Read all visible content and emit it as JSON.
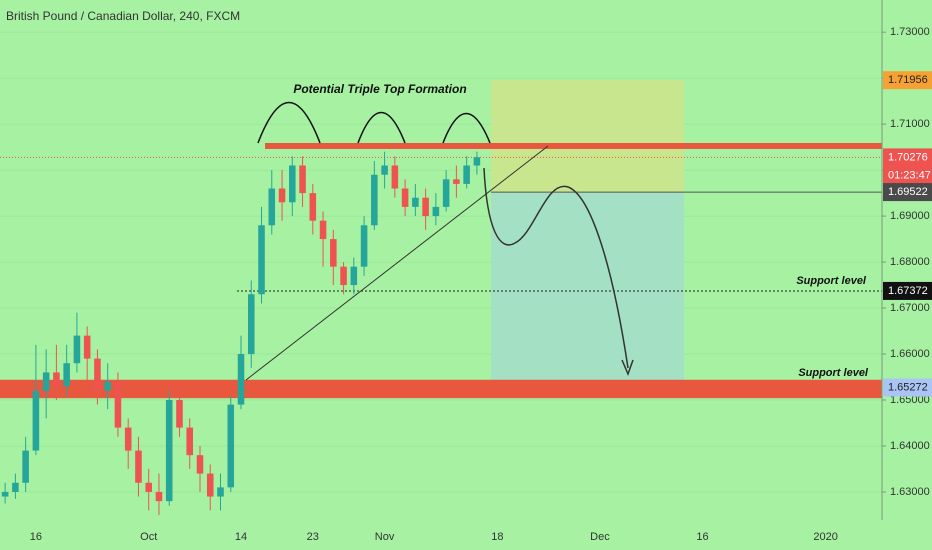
{
  "chart_data": {
    "type": "candlestick",
    "title": "British Pound / Canadian Dollar, 240, FXCM",
    "annotations": {
      "pattern": "Potential Triple Top Formation",
      "support_upper": "Support level",
      "support_lower": "Support level"
    },
    "categories": [
      null,
      null,
      null,
      "16",
      null,
      null,
      null,
      null,
      null,
      null,
      null,
      null,
      null,
      null,
      "Oct",
      null,
      null,
      null,
      null,
      null,
      null,
      null,
      null,
      "14",
      null,
      null,
      null,
      null,
      null,
      null,
      "23",
      null,
      null,
      null,
      null,
      null,
      null,
      "Nov",
      null,
      null,
      null,
      null,
      null,
      null,
      null,
      null,
      null,
      null,
      "18",
      null,
      null,
      null,
      null,
      null,
      null,
      null,
      null,
      null,
      "Dec",
      null,
      null,
      null,
      null,
      null,
      null,
      null,
      null,
      null,
      "16",
      null,
      null,
      null,
      null,
      null,
      null,
      null,
      null,
      null,
      null,
      null,
      "2020",
      null,
      null,
      null,
      null,
      null
    ],
    "open": [
      1.629,
      1.63,
      1.632,
      1.639,
      1.652,
      1.656,
      1.653,
      1.658,
      1.664,
      1.659,
      1.652,
      1.654,
      1.644,
      1.639,
      1.632,
      1.63,
      1.628,
      1.65,
      1.644,
      1.638,
      1.634,
      1.629,
      1.631,
      1.649,
      1.66,
      1.673,
      1.688,
      1.696,
      1.693,
      1.701,
      1.695,
      1.689,
      1.685,
      1.679,
      1.675,
      1.679,
      1.688,
      1.699,
      1.701,
      1.696,
      1.692,
      1.694,
      1.69,
      1.692,
      1.698,
      1.697,
      1.701,
      null,
      null,
      null,
      null,
      null,
      null,
      null,
      null,
      null,
      null,
      null,
      null,
      null,
      null,
      null,
      null,
      null,
      null,
      null,
      null,
      null,
      null,
      null,
      null,
      null,
      null,
      null,
      null,
      null,
      null,
      null,
      null,
      null,
      null,
      null,
      null,
      null,
      null,
      null
    ],
    "high": [
      1.632,
      1.634,
      1.642,
      1.662,
      1.661,
      1.662,
      1.662,
      1.669,
      1.666,
      1.661,
      1.658,
      1.656,
      1.646,
      1.642,
      1.635,
      1.634,
      1.652,
      1.653,
      1.646,
      1.64,
      1.636,
      1.634,
      1.651,
      1.664,
      1.676,
      1.692,
      1.7,
      1.7,
      1.703,
      1.703,
      1.697,
      1.691,
      1.687,
      1.68,
      1.681,
      1.69,
      1.702,
      1.704,
      1.703,
      1.698,
      1.697,
      1.696,
      1.695,
      1.7,
      1.701,
      1.703,
      1.704,
      null,
      null,
      null,
      null,
      null,
      null,
      null,
      null,
      null,
      null,
      null,
      null,
      null,
      null,
      null,
      null,
      null,
      null,
      null,
      null,
      null,
      null,
      null,
      null,
      null,
      null,
      null,
      null,
      null,
      null,
      null,
      null,
      null,
      null,
      null,
      null,
      null,
      null,
      null
    ],
    "low": [
      1.6275,
      1.6285,
      1.63,
      1.638,
      1.646,
      1.65,
      1.651,
      1.656,
      1.654,
      1.649,
      1.648,
      1.642,
      1.635,
      1.629,
      1.626,
      1.625,
      1.627,
      1.642,
      1.635,
      1.63,
      1.626,
      1.626,
      1.63,
      1.648,
      1.657,
      1.671,
      1.686,
      1.689,
      1.69,
      1.692,
      1.686,
      1.679,
      1.675,
      1.673,
      1.673,
      1.677,
      1.687,
      1.696,
      1.694,
      1.69,
      1.69,
      1.687,
      1.688,
      1.691,
      1.694,
      1.696,
      1.699,
      null,
      null,
      null,
      null,
      null,
      null,
      null,
      null,
      null,
      null,
      null,
      null,
      null,
      null,
      null,
      null,
      null,
      null,
      null,
      null,
      null,
      null,
      null,
      null,
      null,
      null,
      null,
      null,
      null,
      null,
      null,
      null,
      null,
      null,
      null,
      null,
      null,
      null,
      null
    ],
    "close": [
      1.63,
      1.632,
      1.639,
      1.652,
      1.656,
      1.653,
      1.658,
      1.664,
      1.659,
      1.652,
      1.654,
      1.644,
      1.639,
      1.632,
      1.63,
      1.628,
      1.65,
      1.644,
      1.638,
      1.634,
      1.629,
      1.631,
      1.649,
      1.66,
      1.673,
      1.688,
      1.696,
      1.693,
      1.701,
      1.695,
      1.689,
      1.685,
      1.679,
      1.675,
      1.679,
      1.688,
      1.699,
      1.701,
      1.696,
      1.692,
      1.694,
      1.69,
      1.692,
      1.698,
      1.697,
      1.701,
      1.7028,
      null,
      null,
      null,
      null,
      null,
      null,
      null,
      null,
      null,
      null,
      null,
      null,
      null,
      null,
      null,
      null,
      null,
      null,
      null,
      null,
      null,
      null,
      null,
      null,
      null,
      null,
      null,
      null,
      null,
      null,
      null,
      null,
      null,
      null,
      null,
      null,
      null,
      null,
      null
    ],
    "up_color": "#26a69a",
    "down_color": "#ef5350",
    "ylim": [
      1.6239,
      1.737
    ],
    "yticks": [
      {
        "value": 1.63,
        "label": "1.63000"
      },
      {
        "value": 1.64,
        "label": "1.64000"
      },
      {
        "value": 1.65,
        "label": "1.65000"
      },
      {
        "value": 1.66,
        "label": "1.66000"
      },
      {
        "value": 1.67,
        "label": "1.67000"
      },
      {
        "value": 1.68,
        "label": "1.68000"
      },
      {
        "value": 1.69,
        "label": "1.69000"
      },
      {
        "value": 1.7,
        "label": "1.70000"
      },
      {
        "value": 1.71,
        "label": "1.71000"
      },
      {
        "value": 1.72,
        "label": "1.72000"
      },
      {
        "value": 1.73,
        "label": "1.73000"
      }
    ],
    "grid": true,
    "price_labels": [
      1.71956,
      1.70276,
      1.69522,
      1.67372,
      1.65272
    ],
    "price_label_colors": [
      "#f6a134",
      "#ef5350",
      "#4a4a4a",
      "#111111",
      "#a9c4f5"
    ],
    "countdown": "01:23:47",
    "resistance_zone": [
      1.7046,
      1.7059
    ],
    "support_zone": [
      1.6504,
      1.6544
    ],
    "zone_color": "#e8583f"
  }
}
